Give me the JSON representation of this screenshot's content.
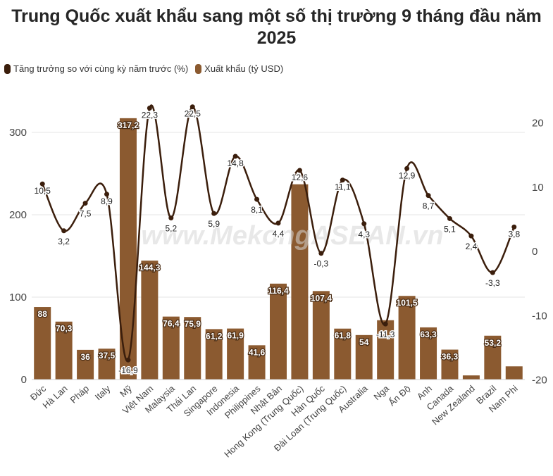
{
  "title": "Trung Quốc xuất khẩu sang một số thị trường 9 tháng đầu năm 2025",
  "watermark": "www.MekongASEAN.vn",
  "colors": {
    "bar": "#8b5a30",
    "line": "#3b1e0c",
    "grid": "#e6e6e6"
  },
  "legend": [
    {
      "label": "Tăng trưởng so với cùng kỳ năm trước (%)",
      "color": "#3b1e0c"
    },
    {
      "label": "Xuất khẩu (tỷ USD)",
      "color": "#8b5a30"
    }
  ],
  "chart_data": {
    "type": "bar",
    "title": "Trung Quốc xuất khẩu sang một số thị trường 9 tháng đầu năm 2025",
    "categories": [
      "Đức",
      "Hà Lan",
      "Pháp",
      "Italy",
      "Mỹ",
      "Việt Nam",
      "Malaysia",
      "Thái Lan",
      "Singapore",
      "Indonesia",
      "Philippines",
      "Nhật Bản",
      "Hong Kong (Trung Quốc)",
      "Hàn Quốc",
      "Đài Loan (Trung Quốc)",
      "Australia",
      "Nga",
      "Ấn Độ",
      "Anh",
      "Canada",
      "New Zealand",
      "Brazil",
      "Nam Phi"
    ],
    "series": [
      {
        "name": "Xuất khẩu (tỷ USD)",
        "type": "bar",
        "axis": "left",
        "values": [
          88,
          70.3,
          36,
          37.5,
          317.2,
          144.3,
          76.4,
          75.9,
          61.2,
          61.9,
          41.6,
          116.4,
          237,
          107.4,
          61.8,
          54,
          72,
          101.5,
          63.3,
          36.3,
          5,
          53.2,
          16
        ],
        "labels": [
          "88",
          "70,3",
          "36",
          "37,5",
          "317,2",
          "144,3",
          "76,4",
          "75,9",
          "61,2",
          "61,9",
          "41,6",
          "116,4",
          "",
          "107,4",
          "61,8",
          "54",
          "",
          "101,5",
          "63,3",
          "36,3",
          "",
          "53,2",
          ""
        ]
      },
      {
        "name": "Tăng trưởng so với cùng kỳ năm trước (%)",
        "type": "line",
        "axis": "right",
        "values": [
          10.5,
          3.2,
          7.5,
          8.9,
          -16.9,
          22.3,
          5.2,
          22.5,
          5.9,
          14.8,
          8.1,
          4.4,
          12.6,
          -0.3,
          11.1,
          4.3,
          -11.3,
          12.9,
          8.7,
          5.1,
          2.4,
          -3.3,
          3.8
        ],
        "labels": [
          "10,5",
          "3,2",
          "7,5",
          "8,9",
          "-16,9",
          "22,3",
          "5,2",
          "22,5",
          "5,9",
          "14,8",
          "8,1",
          "4,4",
          "12,6",
          "-0,3",
          "11,1",
          "4,3",
          "-11,3",
          "12,9",
          "8,7",
          "5,1",
          "2,4",
          "-3,3",
          "3,8"
        ]
      }
    ],
    "yaxis_left": {
      "range": [
        0,
        350
      ],
      "ticks": [
        "0",
        "100",
        "200",
        "300"
      ]
    },
    "yaxis_right": {
      "range": [
        -20,
        25
      ],
      "ticks": [
        "-20",
        "-10",
        "0",
        "10",
        "20"
      ]
    },
    "grid": true,
    "legend_position": "top-left"
  }
}
